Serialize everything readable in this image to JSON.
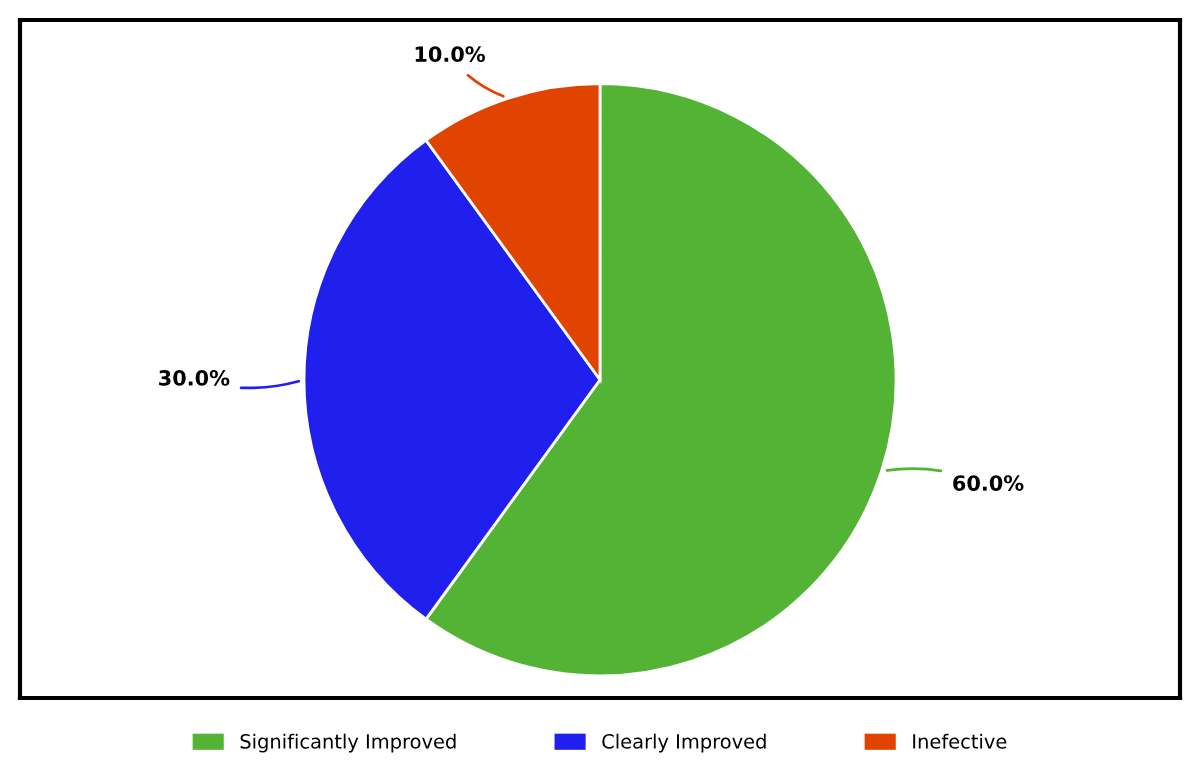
{
  "chart_data": {
    "type": "pie",
    "categories": [
      "Significantly Improved",
      "Clearly Improved",
      "Inefective"
    ],
    "values": [
      60,
      30,
      10
    ],
    "colors": [
      "#52b334",
      "#2020ee",
      "#e04400"
    ],
    "value_labels": [
      "60.0%",
      "30.0%",
      "10.0%"
    ],
    "legend": "bottom"
  }
}
